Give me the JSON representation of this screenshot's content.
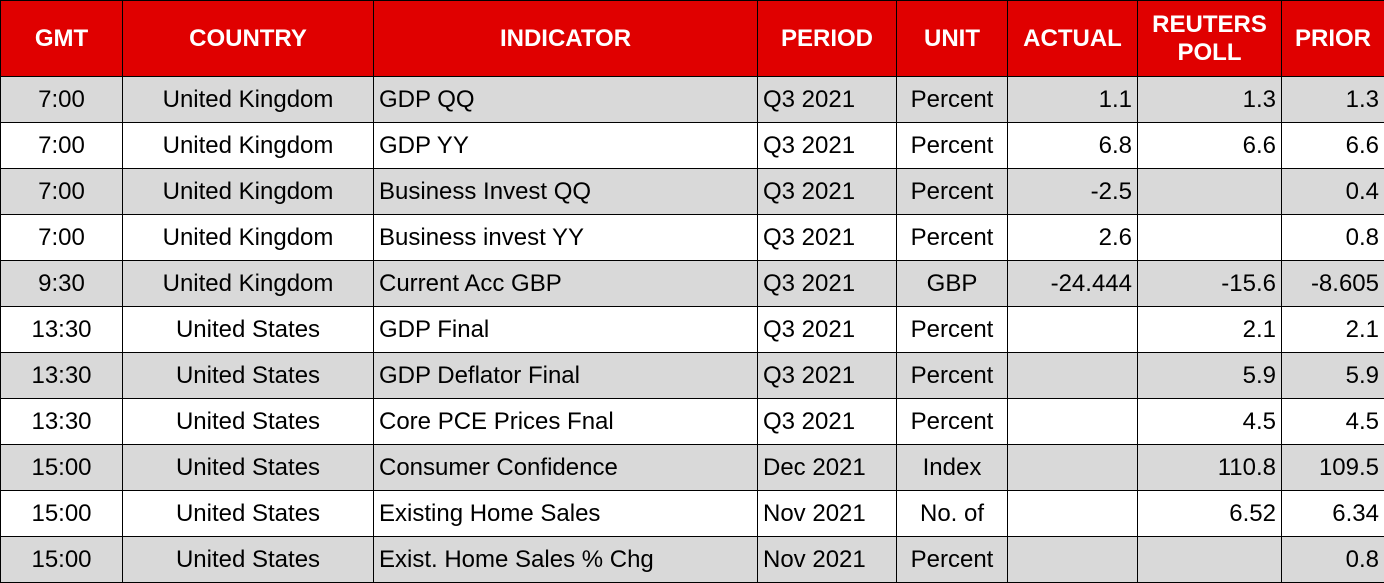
{
  "table": {
    "header": [
      "GMT",
      "COUNTRY",
      "INDICATOR",
      "PERIOD",
      "UNIT",
      "ACTUAL",
      "REUTERS POLL",
      "PRIOR"
    ],
    "rows": [
      [
        "7:00",
        "United Kingdom",
        "GDP QQ",
        "Q3 2021",
        "Percent",
        "1.1",
        "1.3",
        "1.3"
      ],
      [
        "7:00",
        "United Kingdom",
        "GDP YY",
        "Q3 2021",
        "Percent",
        "6.8",
        "6.6",
        "6.6"
      ],
      [
        "7:00",
        "United Kingdom",
        "Business Invest QQ",
        "Q3 2021",
        "Percent",
        "-2.5",
        null,
        "0.4"
      ],
      [
        "7:00",
        "United Kingdom",
        "Business invest YY",
        "Q3 2021",
        "Percent",
        "2.6",
        null,
        "0.8"
      ],
      [
        "9:30",
        "United Kingdom",
        "Current Acc GBP",
        "Q3 2021",
        "GBP",
        "-24.444",
        "-15.6",
        "-8.605"
      ],
      [
        "13:30",
        "United States",
        "GDP Final",
        "Q3 2021",
        "Percent",
        null,
        "2.1",
        "2.1"
      ],
      [
        "13:30",
        "United States",
        "GDP Deflator Final",
        "Q3 2021",
        "Percent",
        null,
        "5.9",
        "5.9"
      ],
      [
        "13:30",
        "United States",
        "Core PCE Prices Fnal",
        "Q3 2021",
        "Percent",
        null,
        "4.5",
        "4.5"
      ],
      [
        "15:00",
        "United States",
        "Consumer Confidence",
        "Dec 2021",
        "Index",
        null,
        "110.8",
        "109.5"
      ],
      [
        "15:00",
        "United States",
        "Existing Home Sales",
        "Nov 2021",
        "No. of",
        null,
        "6.52",
        "6.34"
      ],
      [
        "15:00",
        "United States",
        "Exist. Home Sales % Chg",
        "Nov 2021",
        "Percent",
        null,
        null,
        "0.8"
      ]
    ]
  }
}
